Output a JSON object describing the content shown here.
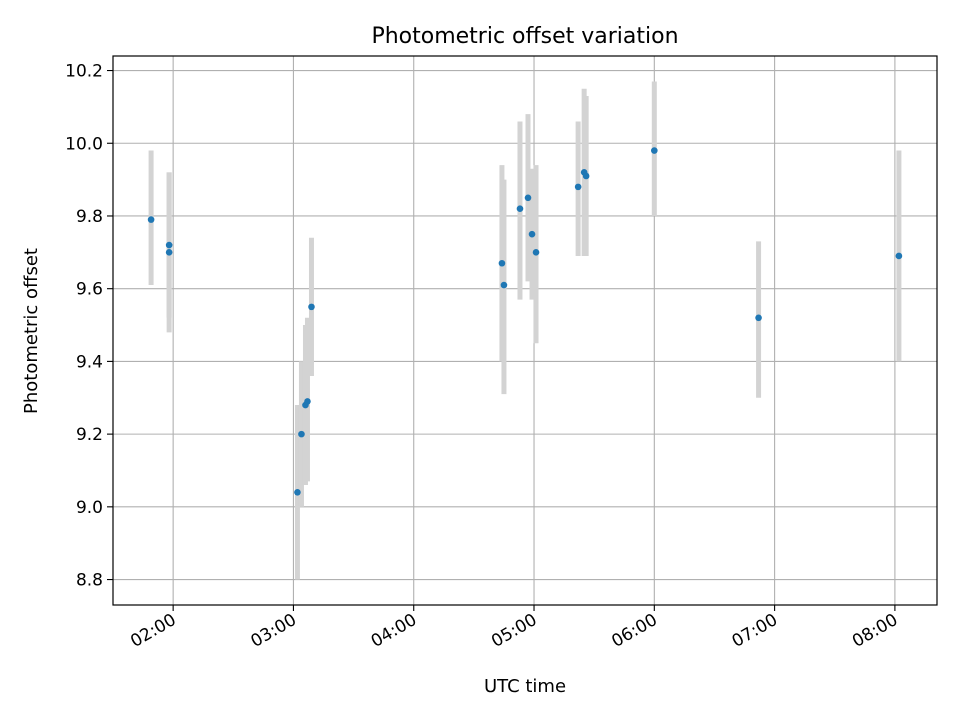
{
  "chart_data": {
    "type": "scatter",
    "title": "Photometric offset variation",
    "xlabel": "UTC time",
    "ylabel": "Photometric offset",
    "x_tick_labels": [
      "02:00",
      "03:00",
      "04:00",
      "05:00",
      "06:00",
      "07:00",
      "08:00"
    ],
    "y_tick_labels": [
      "8.8",
      "9.0",
      "9.2",
      "9.4",
      "9.6",
      "9.8",
      "10.0",
      "10.2"
    ],
    "y_ticks": [
      8.8,
      9.0,
      9.2,
      9.4,
      9.6,
      9.8,
      10.0,
      10.2
    ],
    "xlim": [
      "01:30",
      "08:21"
    ],
    "ylim": [
      8.73,
      10.24
    ],
    "grid": true,
    "point_color": "#1f77b4",
    "errorbar_color": "#d3d3d3",
    "points": [
      {
        "x": "01:49",
        "y": 9.79,
        "ylow": 9.61,
        "yhigh": 9.98
      },
      {
        "x": "01:58",
        "y": 9.72,
        "ylow": 9.52,
        "yhigh": 9.92
      },
      {
        "x": "01:58",
        "y": 9.7,
        "ylow": 9.48,
        "yhigh": 9.92
      },
      {
        "x": "03:02",
        "y": 9.04,
        "ylow": 8.8,
        "yhigh": 9.28
      },
      {
        "x": "03:04",
        "y": 9.2,
        "ylow": 9.0,
        "yhigh": 9.4
      },
      {
        "x": "03:06",
        "y": 9.28,
        "ylow": 9.06,
        "yhigh": 9.5
      },
      {
        "x": "03:07",
        "y": 9.29,
        "ylow": 9.07,
        "yhigh": 9.52
      },
      {
        "x": "03:09",
        "y": 9.55,
        "ylow": 9.36,
        "yhigh": 9.74
      },
      {
        "x": "04:44",
        "y": 9.67,
        "ylow": 9.4,
        "yhigh": 9.94
      },
      {
        "x": "04:45",
        "y": 9.61,
        "ylow": 9.31,
        "yhigh": 9.9
      },
      {
        "x": "04:53",
        "y": 9.82,
        "ylow": 9.57,
        "yhigh": 10.06
      },
      {
        "x": "04:57",
        "y": 9.85,
        "ylow": 9.62,
        "yhigh": 10.08
      },
      {
        "x": "04:59",
        "y": 9.75,
        "ylow": 9.57,
        "yhigh": 9.93
      },
      {
        "x": "05:01",
        "y": 9.7,
        "ylow": 9.45,
        "yhigh": 9.94
      },
      {
        "x": "05:22",
        "y": 9.88,
        "ylow": 9.69,
        "yhigh": 10.06
      },
      {
        "x": "05:25",
        "y": 9.92,
        "ylow": 9.69,
        "yhigh": 10.15
      },
      {
        "x": "05:26",
        "y": 9.91,
        "ylow": 9.69,
        "yhigh": 10.13
      },
      {
        "x": "06:00",
        "y": 9.98,
        "ylow": 9.8,
        "yhigh": 10.17
      },
      {
        "x": "06:52",
        "y": 9.52,
        "ylow": 9.3,
        "yhigh": 9.73
      },
      {
        "x": "08:02",
        "y": 9.69,
        "ylow": 9.4,
        "yhigh": 9.98
      }
    ]
  }
}
